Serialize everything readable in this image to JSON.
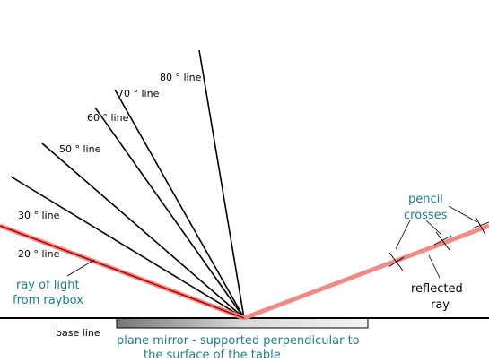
{
  "angle_lines": [
    "80 ° line",
    "70 ° line",
    "60 ° line",
    "50 ° line",
    "30 ° line",
    "20 ° line"
  ],
  "incident_ray": [
    "ray of light",
    "from raybox"
  ],
  "pencil_crosses": [
    "pencil",
    "crosses"
  ],
  "reflected_ray": [
    "reflected",
    "ray"
  ],
  "base_line": "base line",
  "mirror": [
    "plane mirror - supported perpendicular to",
    "the surface of the table"
  ]
}
